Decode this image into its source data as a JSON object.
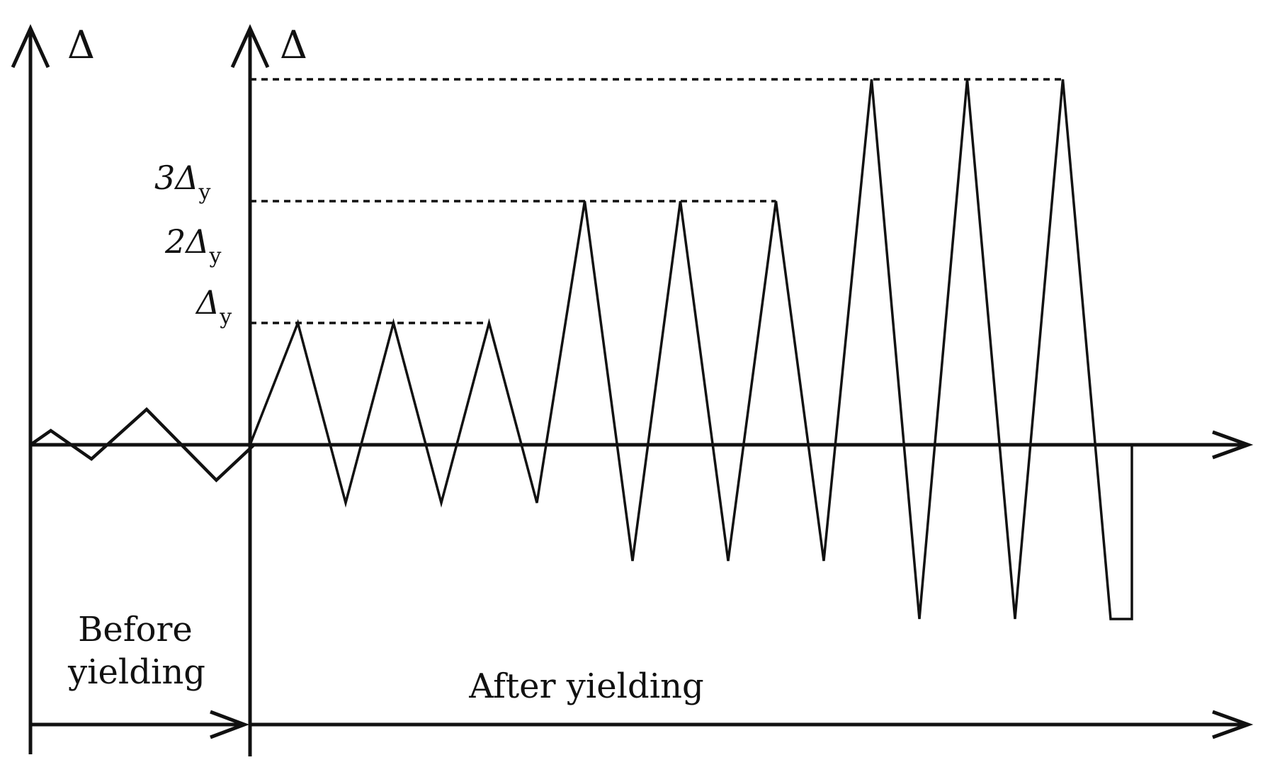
{
  "axes": {
    "left_axis_symbol": "Δ",
    "main_axis_symbol": "Δ"
  },
  "levels": [
    {
      "key": "dy1",
      "main": "Δ",
      "sub": "y",
      "multiplier": 1
    },
    {
      "key": "dy2",
      "main": "2Δ",
      "sub": "y",
      "multiplier": 2
    },
    {
      "key": "dy3",
      "main": "3Δ",
      "sub": "y",
      "multiplier": 3
    }
  ],
  "phases": {
    "before_line1": "Before",
    "before_line2": "yielding",
    "after": "After yielding"
  },
  "chart_data": {
    "type": "line",
    "title": "",
    "xlabel": "",
    "ylabel": "Δ",
    "units": "Δy",
    "before_yielding": {
      "description_values": [
        0,
        0.2,
        -0.2,
        0.5,
        -0.5,
        0
      ],
      "x": [
        0,
        0.35,
        1.05,
        2.0,
        3.2,
        3.85
      ]
    },
    "after_yielding": {
      "amplitudes_per_cycle": [
        1,
        1,
        1,
        2,
        2,
        2,
        3,
        3,
        3
      ],
      "cycles_per_level": 3,
      "final_value": 0
    }
  }
}
